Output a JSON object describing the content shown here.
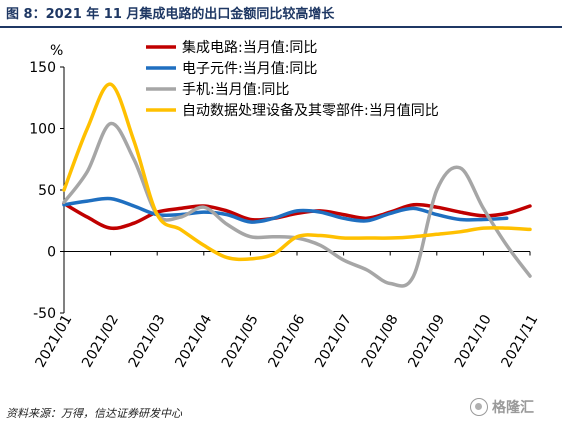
{
  "figure": {
    "title": "图 8：2021 年 11 月集成电路的出口金额同比较高增长",
    "source": "资料来源：万得，信达证券研发中心",
    "watermark": "格隆汇"
  },
  "chart_data": {
    "type": "line",
    "ylabel": "%",
    "ylim": [
      -50,
      150
    ],
    "yticks": [
      "150",
      "100",
      "50",
      "0",
      "-50"
    ],
    "yticks_values": [
      150,
      100,
      50,
      0,
      -50
    ],
    "xtick_labels": [
      "2021/01",
      "2021/02",
      "2021/03",
      "2021/04",
      "2021/05",
      "2021/06",
      "2021/07",
      "2021/08",
      "2021/09",
      "2021/10",
      "2021/11"
    ],
    "x": [
      "2021-01-01",
      "2021-01-15",
      "2021-02-01",
      "2021-02-15",
      "2021-03-01",
      "2021-03-15",
      "2021-04-01",
      "2021-04-15",
      "2021-05-01",
      "2021-05-15",
      "2021-06-01",
      "2021-06-15",
      "2021-07-01",
      "2021-07-15",
      "2021-08-01",
      "2021-08-15",
      "2021-09-01",
      "2021-09-15",
      "2021-10-01",
      "2021-10-15",
      "2021-11-01"
    ],
    "grid": false,
    "legend_position": "top",
    "series": [
      {
        "name": "集成电路:当月值:同比",
        "color": "#c00000",
        "values": [
          39,
          28,
          19,
          23,
          32,
          35,
          37,
          33,
          26,
          27,
          31,
          33,
          30,
          27,
          32,
          38,
          36,
          32,
          29,
          31,
          37
        ]
      },
      {
        "name": "电子元件:当月值:同比",
        "color": "#1f6fc0",
        "values": [
          38,
          41,
          43,
          37,
          30,
          30,
          32,
          30,
          24,
          27,
          33,
          32,
          27,
          25,
          31,
          35,
          30,
          26,
          26,
          27,
          null
        ]
      },
      {
        "name": "手机:当月值:同比",
        "color": "#a6a6a6",
        "values": [
          40,
          65,
          104,
          75,
          30,
          28,
          36,
          22,
          12,
          12,
          11,
          5,
          -7,
          -15,
          -26,
          -20,
          50,
          68,
          35,
          5,
          -20
        ]
      },
      {
        "name": "自动数据处理设备及其零部件:当月值同比",
        "color": "#ffc000",
        "values": [
          50,
          100,
          136,
          90,
          30,
          18,
          5,
          -5,
          -6,
          -2,
          12,
          13,
          11,
          11,
          11,
          12,
          14,
          16,
          19,
          19,
          18
        ]
      }
    ]
  }
}
